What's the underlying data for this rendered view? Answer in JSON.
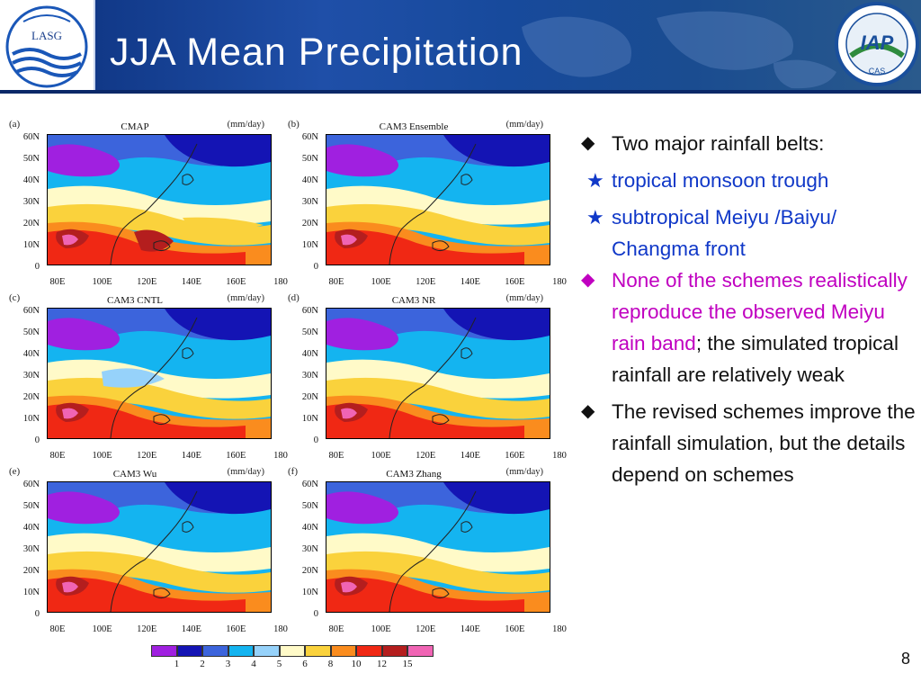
{
  "slide": {
    "title": "JJA Mean Precipitation",
    "page_number": "8"
  },
  "logos": {
    "left_text": "LASG",
    "right_text": "IAP",
    "right_sub": "CAS"
  },
  "axis": {
    "lat_labels": [
      "60N",
      "50N",
      "40N",
      "30N",
      "20N",
      "10N",
      "0"
    ],
    "lon_labels": [
      "80E",
      "100E",
      "120E",
      "140E",
      "160E",
      "180"
    ]
  },
  "panels": [
    {
      "label": "(a)",
      "title": "CMAP",
      "unit": "(mm/day)"
    },
    {
      "label": "(b)",
      "title": "CAM3 Ensemble",
      "unit": "(mm/day)"
    },
    {
      "label": "(c)",
      "title": "CAM3 CNTL",
      "unit": "(mm/day)"
    },
    {
      "label": "(d)",
      "title": "CAM3 NR",
      "unit": "(mm/day)"
    },
    {
      "label": "(e)",
      "title": "CAM3 Wu",
      "unit": "(mm/day)"
    },
    {
      "label": "(f)",
      "title": "CAM3 Zhang",
      "unit": "(mm/day)"
    }
  ],
  "colorbar": {
    "colors": [
      "#a020e0",
      "#1414b4",
      "#3c64dc",
      "#14b4f0",
      "#96d2fa",
      "#fffac8",
      "#fad23c",
      "#fa8c1e",
      "#f02814",
      "#b41e1e",
      "#f064b4"
    ],
    "labels": [
      "1",
      "2",
      "3",
      "4",
      "5",
      "6",
      "8",
      "10",
      "12",
      "15"
    ]
  },
  "bullets": {
    "b1_marker": "◆",
    "b1_text": "Two major rainfall belts:",
    "s1_marker": "★",
    "s1_text": "tropical monsoon trough",
    "s2_marker": "★",
    "s2_text": "subtropical Meiyu /Baiyu/ Changma front",
    "b2_marker": "◆",
    "b2_highlight": "None of the schemes realistically reproduce the observed Meiyu rain band",
    "b2_rest": "; the simulated tropical rainfall are relatively weak",
    "b3_marker": "◆",
    "b3_text": "The revised schemes improve the rainfall simulation, but the details depend on schemes"
  }
}
